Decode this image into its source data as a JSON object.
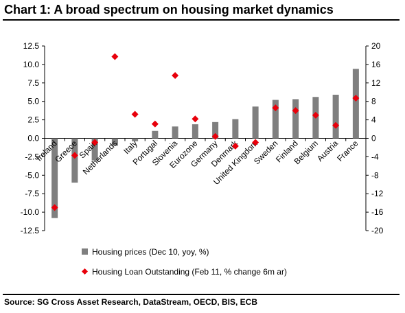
{
  "header": {
    "title": "Chart 1: A broad spectrum on housing market dynamics"
  },
  "footer": {
    "source": "Source: SG Cross Asset Research, DataStream, OECD, BIS, ECB"
  },
  "chart_data": {
    "type": "bar",
    "categories": [
      "Ireland",
      "Greece",
      "Spain",
      "Netherlands",
      "Italy",
      "Portugal",
      "Slovenia",
      "Eurozone",
      "Germany",
      "Denmark",
      "United Kingdom",
      "Sweden",
      "Finland",
      "Belgium",
      "Austria",
      "France"
    ],
    "series": [
      {
        "name": "Housing prices (Dec 10, yoy, %)",
        "axis": "left",
        "style": "bar",
        "color": "#7f7f7f",
        "values": [
          -10.8,
          -6.0,
          -3.0,
          -1.0,
          -0.4,
          1.0,
          1.6,
          1.9,
          2.2,
          2.6,
          4.3,
          5.2,
          5.3,
          5.6,
          5.9,
          9.4
        ]
      },
      {
        "name": "Housing Loan Outstanding (Feb 11, % change 6m ar)",
        "axis": "right",
        "style": "diamond",
        "color": "#e8000b",
        "values": [
          -15.0,
          -3.7,
          -0.9,
          17.7,
          5.2,
          3.1,
          13.6,
          4.2,
          0.4,
          -1.7,
          -0.9,
          6.6,
          6.0,
          5.0,
          2.8,
          8.7
        ]
      }
    ],
    "y_left": {
      "ylim": [
        -12.5,
        12.5
      ],
      "ticks": [
        "-12.5",
        "-10.0",
        "-7.5",
        "-5.0",
        "-2.5",
        "0.0",
        "2.5",
        "5.0",
        "7.5",
        "10.0",
        "12.5"
      ]
    },
    "y_right": {
      "ylim": [
        -20,
        20
      ],
      "ticks": [
        "-20",
        "-16",
        "-12",
        "-8",
        "-4",
        "0",
        "4",
        "8",
        "12",
        "16",
        "20"
      ]
    },
    "grid": false,
    "legend": "bottom"
  }
}
